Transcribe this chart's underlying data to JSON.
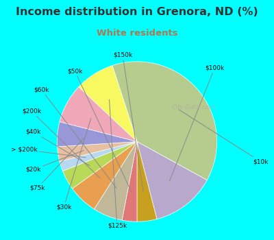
{
  "title": "Income distribution in Grenora, ND (%)",
  "subtitle": "White residents",
  "labels": [
    "$10k",
    "$100k",
    "$150k",
    "$50k",
    "$60k",
    "$200k",
    "$40k",
    "> $200k",
    "$20k",
    "$75k",
    "$30k",
    "$125k"
  ],
  "values": [
    38,
    13,
    4,
    3,
    6,
    6,
    4,
    2,
    3,
    5,
    8,
    8
  ],
  "colors": [
    "#b5cc8e",
    "#b8a8cc",
    "#c8a020",
    "#e07878",
    "#c0b898",
    "#e8a050",
    "#b8d858",
    "#b8d8f0",
    "#e8c0a0",
    "#9898d8",
    "#f0a8b8",
    "#f8f860"
  ],
  "background_color": "#00ffff",
  "chart_bg_color": "#d8eed8",
  "title_color": "#333333",
  "subtitle_color": "#b07850",
  "title_fontsize": 11.5,
  "subtitle_fontsize": 9.5,
  "label_fontsize": 6.5,
  "watermark": "City-Data.com",
  "startangle": 108,
  "label_data": {
    "$10k": [
      1.45,
      -0.25,
      "left"
    ],
    "$100k": [
      0.85,
      0.92,
      "left"
    ],
    "$150k": [
      -0.18,
      1.08,
      "center"
    ],
    "$50k": [
      -0.68,
      0.88,
      "right"
    ],
    "$60k": [
      -1.1,
      0.65,
      "right"
    ],
    "$200k": [
      -1.2,
      0.38,
      "right"
    ],
    "$40k": [
      -1.2,
      0.12,
      "right"
    ],
    "> $200k": [
      -1.25,
      -0.1,
      "right"
    ],
    "$20k": [
      -1.2,
      -0.35,
      "right"
    ],
    "$75k": [
      -1.15,
      -0.58,
      "right"
    ],
    "$30k": [
      -0.82,
      -0.82,
      "right"
    ],
    "$125k": [
      -0.25,
      -1.05,
      "center"
    ]
  }
}
